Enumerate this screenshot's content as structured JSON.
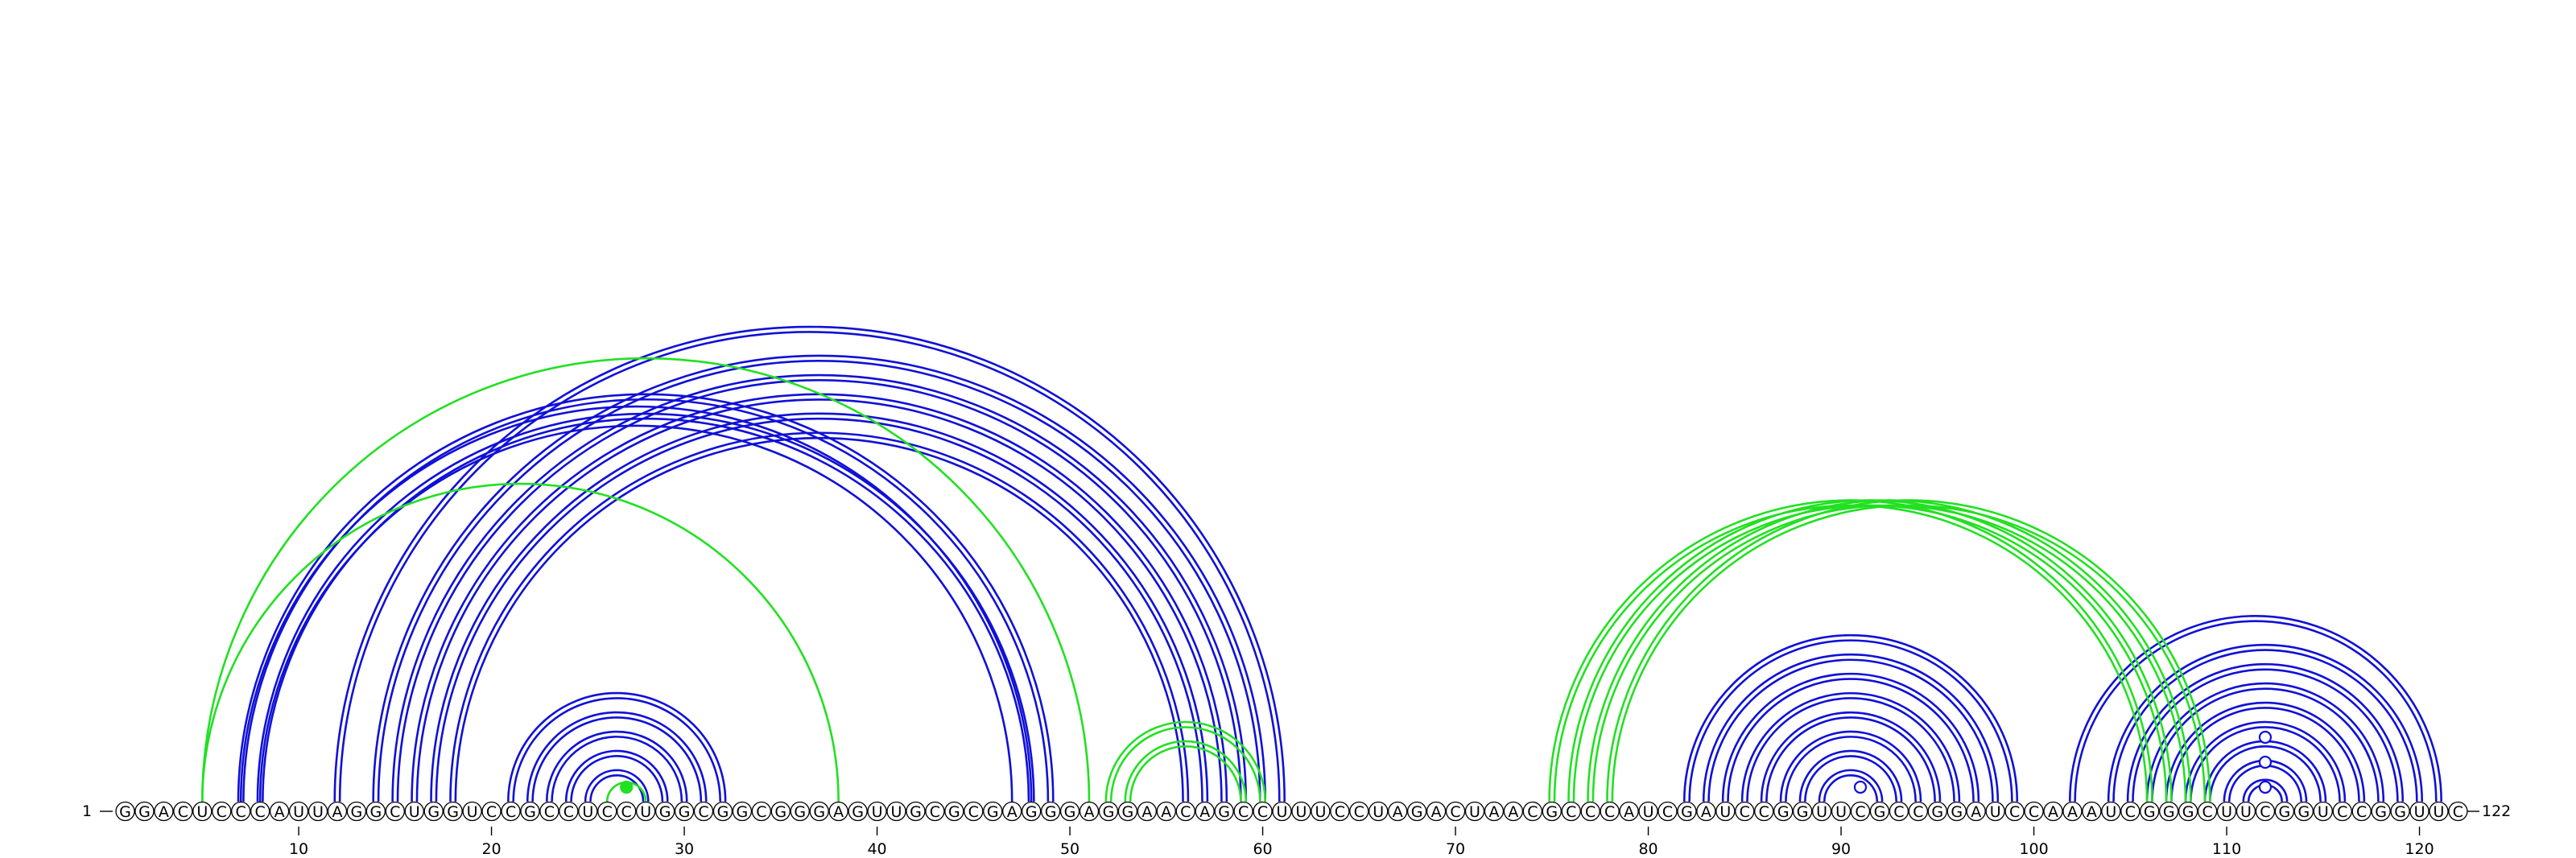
{
  "sequence": "GGACUCCCAUUAGGCUGGUCCGCCUCCUGGCGGCGGGAGUUGCGCGAGGGAGGAACAGCCUUUCCUAGACUAACGCCCAUCGAUCCGGUUCGCCGGAUCCAAAUCGGGCUUCGGUCCGGUUC",
  "start_label": "1",
  "end_label": "122",
  "ticks": [
    {
      "pos": 10,
      "label": "10"
    },
    {
      "pos": 20,
      "label": "20"
    },
    {
      "pos": 30,
      "label": "30"
    },
    {
      "pos": 40,
      "label": "40"
    },
    {
      "pos": 50,
      "label": "50"
    },
    {
      "pos": 60,
      "label": "60"
    },
    {
      "pos": 70,
      "label": "70"
    },
    {
      "pos": 80,
      "label": "80"
    },
    {
      "pos": 90,
      "label": "90"
    },
    {
      "pos": 100,
      "label": "100"
    },
    {
      "pos": 110,
      "label": "110"
    },
    {
      "pos": 120,
      "label": "120"
    }
  ],
  "colors": {
    "blue": "#1010d8",
    "green": "#22e022",
    "blue_dark": "#0000c8"
  },
  "arc_groups": [
    {
      "color": "blue",
      "double": true,
      "pairs": [
        [
          21,
          32
        ],
        [
          22,
          31
        ],
        [
          23,
          30
        ],
        [
          24,
          29
        ],
        [
          25,
          28
        ]
      ]
    },
    {
      "color": "blue",
      "double": true,
      "pairs": [
        [
          7,
          49
        ],
        [
          8,
          48
        ]
      ]
    },
    {
      "color": "blue",
      "double": false,
      "pairs": [
        [
          7,
          48
        ],
        [
          8,
          47
        ]
      ]
    },
    {
      "color": "blue",
      "double": true,
      "pairs": [
        [
          12,
          61
        ],
        [
          14,
          60
        ],
        [
          15,
          59
        ],
        [
          16,
          58
        ],
        [
          17,
          57
        ],
        [
          18,
          56
        ]
      ]
    },
    {
      "color": "blue",
      "double": true,
      "pairs": [
        [
          82,
          99
        ],
        [
          83,
          98
        ],
        [
          84,
          97
        ],
        [
          85,
          96
        ],
        [
          86,
          95
        ],
        [
          87,
          94
        ],
        [
          88,
          93
        ],
        [
          89,
          92
        ]
      ]
    },
    {
      "color": "blue",
      "double": true,
      "pairs": [
        [
          102,
          121
        ],
        [
          104,
          120
        ],
        [
          105,
          119
        ],
        [
          106,
          118
        ],
        [
          107,
          117
        ],
        [
          108,
          116
        ],
        [
          109,
          115
        ],
        [
          110,
          114
        ],
        [
          111,
          113
        ]
      ]
    },
    {
      "color": "green",
      "double": false,
      "pairs": [
        [
          5,
          51
        ],
        [
          5,
          38
        ],
        [
          26,
          28
        ]
      ]
    },
    {
      "color": "green",
      "double": true,
      "pairs": [
        [
          52,
          60
        ],
        [
          53,
          59
        ]
      ]
    },
    {
      "color": "green",
      "double": true,
      "pairs": [
        [
          75,
          106
        ],
        [
          76,
          107
        ],
        [
          77,
          108
        ],
        [
          78,
          109
        ]
      ]
    }
  ],
  "markers": [
    {
      "pos": 27,
      "height": 1,
      "style": "filled",
      "color": "green"
    },
    {
      "pos": 91,
      "height": 1,
      "style": "open",
      "color": "blue"
    },
    {
      "pos": 112,
      "height": 1,
      "style": "open",
      "color": "blue"
    },
    {
      "pos": 112,
      "height": 3,
      "style": "open",
      "color": "blue"
    },
    {
      "pos": 112,
      "height": 5,
      "style": "open",
      "color": "blue"
    }
  ]
}
